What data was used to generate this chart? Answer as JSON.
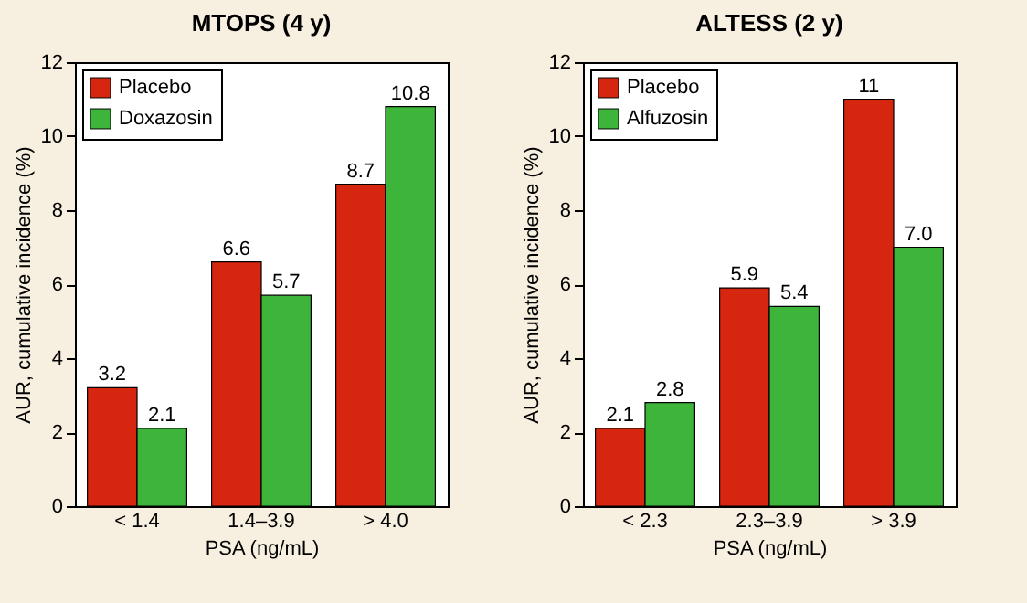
{
  "chart_data": [
    {
      "type": "bar",
      "title": "MTOPS (4 y)",
      "xlabel": "PSA (ng/mL)",
      "ylabel": "AUR, cumulative incidence (%)",
      "categories": [
        "< 1.4",
        "1.4–3.9",
        "> 4.0"
      ],
      "ylim": [
        0,
        12
      ],
      "yticks": [
        0,
        2,
        4,
        6,
        8,
        10,
        12
      ],
      "grid": false,
      "legend": "top left",
      "series": [
        {
          "name": "Placebo",
          "color": "#d7260f",
          "values": [
            3.2,
            6.6,
            8.7
          ],
          "value_labels": [
            "3.2",
            "6.6",
            "8.7"
          ]
        },
        {
          "name": "Doxazosin",
          "color": "#3db53a",
          "values": [
            2.1,
            5.7,
            10.8
          ],
          "value_labels": [
            "2.1",
            "5.7",
            "10.8"
          ]
        }
      ]
    },
    {
      "type": "bar",
      "title": "ALTESS (2 y)",
      "xlabel": "PSA (ng/mL)",
      "ylabel": "AUR, cumulative incidence (%)",
      "categories": [
        "< 2.3",
        "2.3–3.9",
        "> 3.9"
      ],
      "ylim": [
        0,
        12
      ],
      "yticks": [
        0,
        2,
        4,
        6,
        8,
        10,
        12
      ],
      "grid": false,
      "legend": "top left",
      "series": [
        {
          "name": "Placebo",
          "color": "#d7260f",
          "values": [
            2.1,
            5.9,
            11
          ],
          "value_labels": [
            "2.1",
            "5.9",
            "11"
          ]
        },
        {
          "name": "Alfuzosin",
          "color": "#3db53a",
          "values": [
            2.8,
            5.4,
            7.0
          ],
          "value_labels": [
            "2.8",
            "5.4",
            "7.0"
          ]
        }
      ]
    }
  ]
}
